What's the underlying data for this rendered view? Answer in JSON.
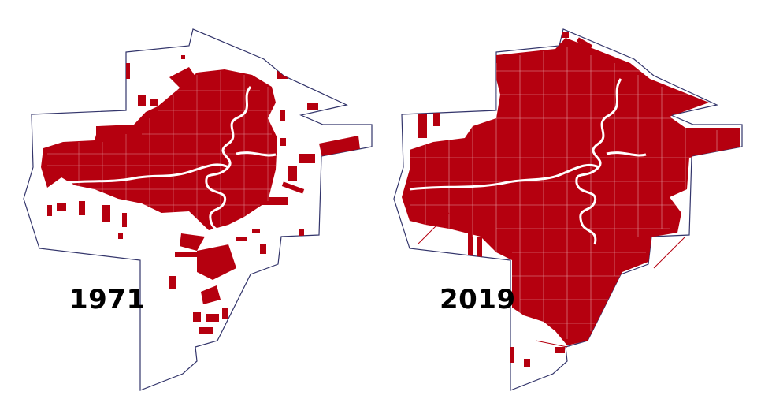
{
  "maps": [
    {
      "year_label": "1971"
    },
    {
      "year_label": "2019"
    }
  ],
  "colors": {
    "urban_fill": "#b5000f",
    "boundary_stroke": "#33356b",
    "river": "#ffffff",
    "background": "#ffffff"
  }
}
